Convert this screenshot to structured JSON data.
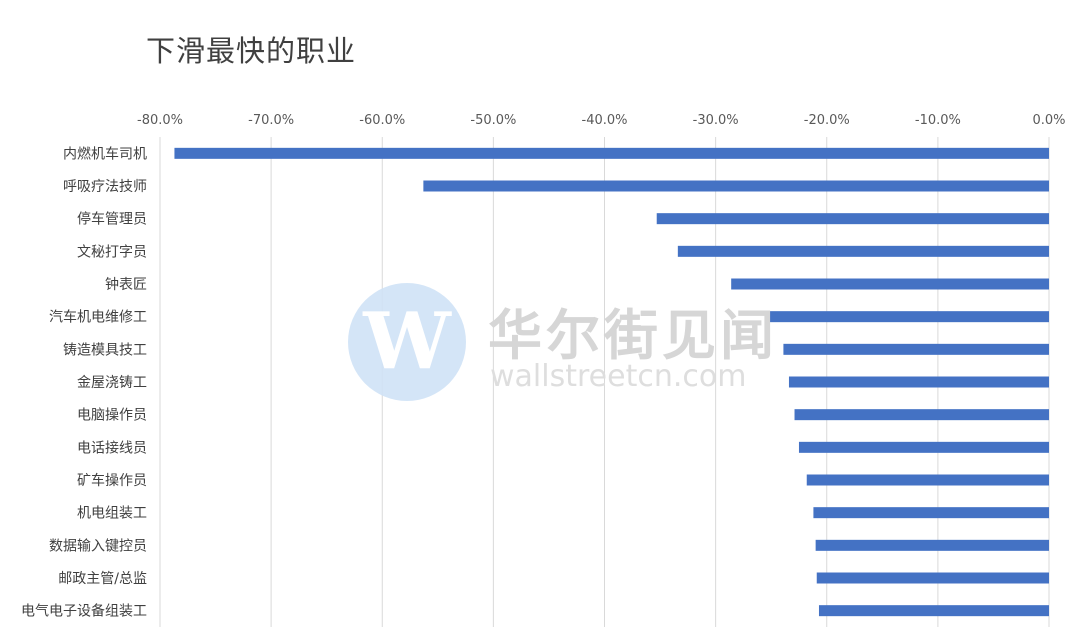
{
  "chart_data": {
    "type": "bar",
    "orientation": "horizontal",
    "title": "下滑最快的职业",
    "xlabel": "",
    "ylabel": "",
    "xlim": [
      -80,
      0
    ],
    "x_ticks": [
      "-80.0%",
      "-70.0%",
      "-60.0%",
      "-50.0%",
      "-40.0%",
      "-30.0%",
      "-20.0%",
      "-10.0%",
      "0.0%"
    ],
    "x_axis_position": "top",
    "grid": true,
    "legend": "none",
    "bar_color": "#4472c4",
    "categories": [
      "内燃机车司机",
      "呼吸疗法技师",
      "停车管理员",
      "文秘打字员",
      "钟表匠",
      "汽车机电维修工",
      "铸造模具技工",
      "金屋浇铸工",
      "电脑操作员",
      "电话接线员",
      "矿车操作员",
      "机电组装工",
      "数据输入键控员",
      "邮政主管/总监",
      "电气电子设备组装工"
    ],
    "values": [
      -78.7,
      -56.3,
      -35.3,
      -33.4,
      -28.6,
      -25.2,
      -23.9,
      -23.4,
      -22.9,
      -22.5,
      -21.8,
      -21.2,
      -21.0,
      -20.9,
      -20.7
    ]
  },
  "watermark": {
    "logo_letter": "W",
    "name": "华尔街见闻",
    "site": "wallstreetcn.com"
  }
}
